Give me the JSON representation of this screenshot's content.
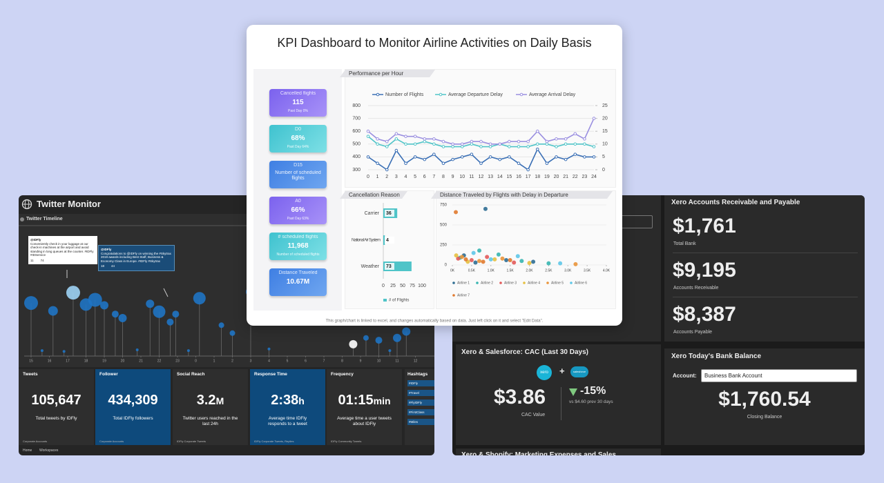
{
  "twitter": {
    "title": "Twitter Monitor",
    "timeline": {
      "title": "Twitter Timeline",
      "tweets": [
        {
          "handle": "@IDFly",
          "text": "Conveniently check in your luggage at our check-in machines at the airport and avoid standing in long queues at the counter. #IDFly #IDService",
          "retweets": 11,
          "likes": 74
        },
        {
          "handle": "@IDFly",
          "text": "Congratulations to @IDFly on winning the #Skytrax 2019 awards including Best Staff, Business & Economy Class in Europe. #IDFly #Skytrax",
          "retweets": 18,
          "likes": 44
        }
      ],
      "xlim": [
        0,
        22
      ],
      "ylim": [
        0,
        100
      ],
      "xticks": [
        {
          "value": 0,
          "label": "15"
        },
        {
          "value": 1,
          "label": "16"
        },
        {
          "value": 2,
          "label": "17"
        },
        {
          "value": 3,
          "label": "18"
        },
        {
          "value": 4,
          "label": "19"
        },
        {
          "value": 5,
          "label": "20"
        },
        {
          "value": 6,
          "label": "21"
        },
        {
          "value": 7,
          "label": "22"
        },
        {
          "value": 8,
          "label": "23"
        },
        {
          "value": 9,
          "label": "0"
        },
        {
          "value": 10,
          "label": "1"
        },
        {
          "value": 11,
          "label": "2"
        },
        {
          "value": 12,
          "label": "3"
        },
        {
          "value": 13,
          "label": "4"
        },
        {
          "value": 14,
          "label": "5"
        },
        {
          "value": 15,
          "label": "6"
        },
        {
          "value": 16,
          "label": "7"
        },
        {
          "value": 17,
          "label": "8"
        },
        {
          "value": 18,
          "label": "9"
        },
        {
          "value": 19,
          "label": "10"
        },
        {
          "value": 20,
          "label": "11"
        },
        {
          "value": 21,
          "label": "12"
        }
      ],
      "bubbles": {
        "x": [
          0,
          1.2,
          2.3,
          3,
          3.5,
          4,
          4.6,
          5,
          6.5,
          7,
          7.6,
          7.9,
          9.2,
          10.4,
          11,
          12,
          17.6,
          18.3,
          19,
          20,
          20.5,
          0.6,
          1.8,
          5.8,
          8.6,
          13,
          19.6
        ],
        "y": [
          66,
          56,
          79,
          64,
          70,
          63,
          52,
          47,
          65,
          55,
          42,
          52,
          72,
          38,
          28,
          80,
          14,
          22,
          19,
          22,
          30,
          6,
          5,
          7,
          6,
          8,
          6
        ],
        "size": [
          10,
          7,
          10,
          9,
          10,
          6,
          5,
          6,
          6,
          9,
          5,
          5,
          9,
          4,
          4,
          7,
          6,
          4,
          5,
          6,
          6,
          2,
          2,
          2,
          2,
          2,
          2
        ],
        "colors": [
          "#1f74c4",
          "#1f74c4",
          "#9dd3f5",
          "#1f74c4",
          "#1f74c4",
          "#1f74c4",
          "#1f74c4",
          "#1f74c4",
          "#1f74c4",
          "#1f74c4",
          "#1f74c4",
          "#1f74c4",
          "#1f74c4",
          "#1f74c4",
          "#1f74c4",
          "#1f74c4",
          "#ffffff",
          "#1f74c4",
          "#1f74c4",
          "#1f74c4",
          "#1f74c4",
          "#1f74c4",
          "#1f74c4",
          "#1f74c4",
          "#1f74c4",
          "#1f74c4",
          "#1f74c4"
        ]
      }
    },
    "metrics": [
      {
        "title": "Tweets",
        "value": "105,647",
        "unit": "",
        "caption": "Total tweets by IDFly",
        "source": "Corporate Accounts"
      },
      {
        "title": "Follower",
        "value": "434,309",
        "unit": "",
        "caption": "Total IDFly followers",
        "source": "Corporate Accounts"
      },
      {
        "title": "Social Reach",
        "value": "3.2",
        "unit": "M",
        "caption": "Twitter users reached in the last 24h",
        "source": "IDFly Corporate Tweets"
      },
      {
        "title": "Response Time",
        "value": "2:38",
        "unit": "h",
        "caption": "Average time IDFly responds to a tweet",
        "source": "IDFly Corporate Tweets, Replies"
      },
      {
        "title": "Frequency",
        "value": "01:15",
        "unit": "min",
        "caption": "Average time a user tweets about IDFly",
        "source": "IDFly Community Tweets"
      }
    ],
    "hashtags": {
      "title": "Hashtags",
      "items": [
        "#IDFly",
        "#Travel",
        "#FlyIDFly",
        "#FirstClass",
        "#Miles"
      ]
    },
    "nav": [
      "Home",
      "Workspaces"
    ]
  },
  "kpi": {
    "title": "KPI Dashboard to Monitor Airline Activities on Daily Basis",
    "cards": [
      {
        "label": "Cancelled flights",
        "value": "115",
        "sub": "Past Day 0%"
      },
      {
        "label": "D0",
        "value": "68%",
        "sub": "Past Day 64%"
      },
      {
        "label": "D15",
        "value": "",
        "sub": "Number of scheduled flights"
      },
      {
        "label": "A0",
        "value": "66%",
        "sub": "Past Day 63%"
      },
      {
        "label": "# scheduled flights",
        "value": "11,968",
        "sub": "Number of scheduled flights"
      },
      {
        "label": "Distance Traveled",
        "value": "10.67M",
        "sub": ""
      }
    ],
    "performance": {
      "title": "Performance per Hour",
      "x": [
        0,
        1,
        2,
        3,
        4,
        5,
        6,
        7,
        8,
        9,
        10,
        11,
        12,
        13,
        14,
        15,
        16,
        17,
        18,
        19,
        20,
        21,
        22,
        23,
        24
      ],
      "xlim": [
        0,
        24
      ],
      "ylim": [
        300,
        800
      ],
      "yticks": [
        300,
        400,
        500,
        600,
        700,
        800
      ],
      "y2lim": [
        0,
        25
      ],
      "y2ticks": [
        0,
        5,
        10,
        15,
        20,
        25
      ],
      "series": [
        {
          "name": "Number of Flights",
          "color": "#3a6fb5",
          "values": [
            400,
            350,
            300,
            450,
            350,
            400,
            380,
            420,
            350,
            380,
            400,
            420,
            350,
            400,
            380,
            400,
            350,
            300,
            460,
            350,
            400,
            380,
            420,
            400,
            400
          ]
        },
        {
          "name": "Average Departure Delay",
          "color": "#4fc4c8",
          "axis": "y2",
          "values": [
            13,
            10,
            9,
            12,
            10,
            10,
            11,
            10,
            9,
            9,
            9,
            10,
            9,
            9,
            10,
            9,
            9,
            9,
            10,
            10,
            9,
            10,
            10,
            10,
            9
          ]
        },
        {
          "name": "Average Arrival Delay",
          "color": "#9a8fe0",
          "axis": "y2",
          "values": [
            15,
            12,
            11,
            14,
            13,
            13,
            12,
            12,
            11,
            10,
            10,
            11,
            11,
            10,
            10,
            11,
            11,
            11,
            15,
            11,
            12,
            12,
            14,
            12,
            20
          ]
        }
      ]
    },
    "cancellation": {
      "title": "Cancellation Reason",
      "categories": [
        "Carrier",
        "National Air System",
        "Weather"
      ],
      "values": [
        36,
        4,
        73
      ],
      "color": "#4fc4c8",
      "xlim": [
        0,
        100
      ],
      "xticks": [
        0,
        25,
        50,
        75,
        100
      ],
      "legend": "# of Flights"
    },
    "distance": {
      "title": "Distance Traveled by Flights with Delay in Departure",
      "xlim": [
        0,
        4000
      ],
      "ylim": [
        0,
        750
      ],
      "yticks": [
        0,
        250,
        500,
        750
      ],
      "xticks": [
        {
          "value": 0,
          "label": "0K"
        },
        {
          "value": 500,
          "label": "0.5K"
        },
        {
          "value": 1000,
          "label": "1.0K"
        },
        {
          "value": 1500,
          "label": "1.5K"
        },
        {
          "value": 2000,
          "label": "2.0K"
        },
        {
          "value": 2500,
          "label": "2.5K"
        },
        {
          "value": 3000,
          "label": "3.0K"
        },
        {
          "value": 3500,
          "label": "3.5K"
        },
        {
          "value": 4000,
          "label": "4.0K"
        }
      ],
      "series": [
        {
          "name": "Airline 1",
          "color": "#2e6d92",
          "x": [
            860,
            300,
            1400,
            2100,
            600
          ],
          "values": [
            700,
            120,
            60,
            40,
            30
          ]
        },
        {
          "name": "Airline 2",
          "color": "#36b5b0",
          "x": [
            700,
            200,
            1200,
            1800,
            2500
          ],
          "values": [
            180,
            90,
            130,
            50,
            20
          ]
        },
        {
          "name": "Airline 3",
          "color": "#e25a5a",
          "x": [
            150,
            500,
            900,
            1600
          ],
          "values": [
            80,
            60,
            100,
            30
          ]
        },
        {
          "name": "Airline 4",
          "color": "#e6c040",
          "x": [
            100,
            400,
            1100,
            2000
          ],
          "values": [
            120,
            40,
            70,
            25
          ]
        },
        {
          "name": "Airline 5",
          "color": "#e9943a",
          "x": [
            250,
            700,
            1300,
            3200
          ],
          "values": [
            100,
            50,
            80,
            10
          ]
        },
        {
          "name": "Airline 6",
          "color": "#5ec7e8",
          "x": [
            550,
            1000,
            1700,
            2800
          ],
          "values": [
            150,
            70,
            110,
            20
          ]
        },
        {
          "name": "Airline 7",
          "color": "#e07a2f",
          "x": [
            90,
            350,
            800,
            1500
          ],
          "values": [
            660,
            70,
            40,
            60
          ]
        }
      ]
    },
    "footnote": "This graph/chart is linked to excel, and changes automatically based on data. Just left click on it and select \"Edit Data\"."
  },
  "xero": {
    "ar": {
      "title": "Xero Accounts Receivable and Payable",
      "items": [
        {
          "value": "$1,761",
          "label": "Total Bank"
        },
        {
          "value": "$9,195",
          "label": "Accounts Receivable"
        },
        {
          "value": "$8,387",
          "label": "Accounts Payable"
        }
      ]
    },
    "cac": {
      "title": "Xero & Salesforce: CAC (Last 30 Days)",
      "logo1": "xero",
      "plus": "+",
      "logo2": "salesforce",
      "value": "$3.86",
      "label": "CAC Value",
      "change": "-15%",
      "compare": "vs $4.60 prev 30 days"
    },
    "bank": {
      "title": "Xero Today's Bank Balance",
      "account_label": "Account:",
      "account": "Business Bank Account",
      "value": "$1,760.54",
      "label": "Closing Balance"
    },
    "shopify": {
      "title": "Xero & Shopify: Marketing Expenses and Sales"
    }
  }
}
